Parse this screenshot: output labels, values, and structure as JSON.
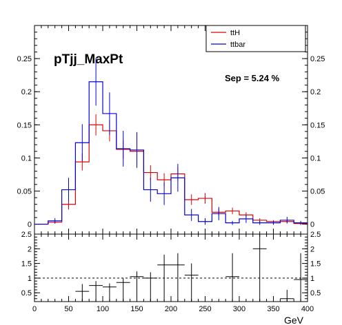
{
  "chart_data": [
    {
      "type": "histogram-step",
      "title": "pTjj_MaxPt",
      "annotation": "Sep = 5.24 %",
      "xlim": [
        0,
        400
      ],
      "ylim": [
        -0.015,
        0.3
      ],
      "yticks": [
        "0",
        "0.05",
        "0.1",
        "0.15",
        "0.2",
        "0.25"
      ],
      "ytick_values": [
        0,
        0.05,
        0.1,
        0.15,
        0.2,
        0.25
      ],
      "bin_edges": [
        0,
        20,
        40,
        60,
        80,
        100,
        120,
        140,
        160,
        180,
        200,
        220,
        240,
        260,
        280,
        300,
        320,
        340,
        360,
        380,
        400
      ],
      "legend_position": "top-right",
      "series": [
        {
          "name": "ttH",
          "color": "#dd0000",
          "values": [
            0,
            0.003,
            0.03,
            0.094,
            0.15,
            0.141,
            0.113,
            0.11,
            0.078,
            0.067,
            0.076,
            0.037,
            0.039,
            0.018,
            0.02,
            0.014,
            0.006,
            0.004,
            0.004,
            0.001
          ],
          "errors": [
            0,
            0.002,
            0.008,
            0.013,
            0.016,
            0.016,
            0.014,
            0.014,
            0.011,
            0.01,
            0.011,
            0.008,
            0.008,
            0.005,
            0.005,
            0.004,
            0.003,
            0.002,
            0.002,
            0.001
          ]
        },
        {
          "name": "ttbar",
          "color": "#0000dd",
          "values": [
            0,
            0.005,
            0.052,
            0.123,
            0.215,
            0.167,
            0.114,
            0.112,
            0.052,
            0.046,
            0.07,
            0.014,
            0.004,
            0.016,
            0.002,
            0.008,
            0.002,
            0.002,
            0.006,
            0.002
          ],
          "errors": [
            0,
            0.004,
            0.018,
            0.028,
            0.036,
            0.032,
            0.027,
            0.027,
            0.018,
            0.017,
            0.021,
            0.009,
            0.005,
            0.01,
            0.003,
            0.006,
            0.003,
            0.003,
            0.005,
            0.003
          ]
        }
      ]
    },
    {
      "type": "ratio",
      "xlim": [
        0,
        400
      ],
      "ylim": [
        0.2,
        2.5
      ],
      "xlabel": "GeV",
      "xticks": [
        "0",
        "50",
        "100",
        "150",
        "200",
        "250",
        "300",
        "350",
        "400"
      ],
      "xtick_values": [
        0,
        50,
        100,
        150,
        200,
        250,
        300,
        350,
        400
      ],
      "yticks": [
        "0.5",
        "1",
        "1.5",
        "2",
        "2.5"
      ],
      "ytick_values": [
        0.5,
        1,
        1.5,
        2,
        2.5
      ],
      "reference_line": 1,
      "points": [
        {
          "x": 70,
          "y": 0.55,
          "err": 0.25
        },
        {
          "x": 90,
          "y": 0.75,
          "err": 0.15
        },
        {
          "x": 110,
          "y": 0.7,
          "err": 0.12
        },
        {
          "x": 130,
          "y": 0.85,
          "err": 0.15
        },
        {
          "x": 150,
          "y": 1.05,
          "err": 0.18
        },
        {
          "x": 170,
          "y": 1.0,
          "err": 0.2
        },
        {
          "x": 190,
          "y": 1.45,
          "err": 0.35
        },
        {
          "x": 210,
          "y": 1.45,
          "err": 0.4
        },
        {
          "x": 230,
          "y": 1.1,
          "err": 0.4
        },
        {
          "x": 290,
          "y": 1.05,
          "err": 0.8
        },
        {
          "x": 330,
          "y": 2.0,
          "err": 1.6
        },
        {
          "x": 370,
          "y": 0.3,
          "err": 0.3
        },
        {
          "x": 390,
          "y": 0.95,
          "err": 0.9
        }
      ]
    }
  ]
}
